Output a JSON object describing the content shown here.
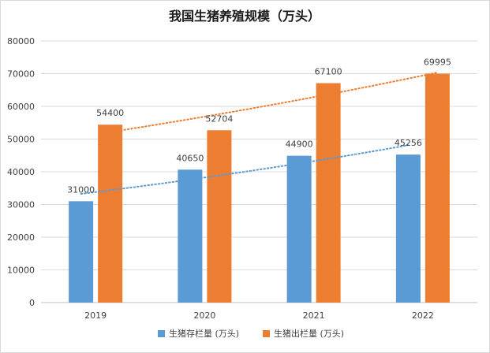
{
  "chart_data": {
    "type": "bar",
    "title": "我国生猪养殖规模（万头）",
    "categories": [
      "2019",
      "2020",
      "2021",
      "2022"
    ],
    "series": [
      {
        "name": "生猪存栏量 (万头)",
        "color": "#5b9bd5",
        "values": [
          31000,
          40650,
          44900,
          45256
        ],
        "labels": [
          "31000",
          "40650",
          "44900",
          "45256"
        ]
      },
      {
        "name": "生猪出栏量 (万头)",
        "color": "#ed7d31",
        "values": [
          54400,
          52704,
          67100,
          69995
        ],
        "labels": [
          "54400",
          "52704",
          "67100",
          "69995"
        ]
      }
    ],
    "trendlines": [
      {
        "series": 0,
        "type": "exponential",
        "style": "dotted",
        "color": "#5b9bd5"
      },
      {
        "series": 1,
        "type": "exponential",
        "style": "dotted",
        "color": "#ed7d31"
      }
    ],
    "ylim": [
      0,
      80000
    ],
    "yticks": [
      "0",
      "10000",
      "20000",
      "30000",
      "40000",
      "50000",
      "60000",
      "70000",
      "80000"
    ],
    "grid": true,
    "legend": "bottom",
    "xlabel": "",
    "ylabel": ""
  }
}
